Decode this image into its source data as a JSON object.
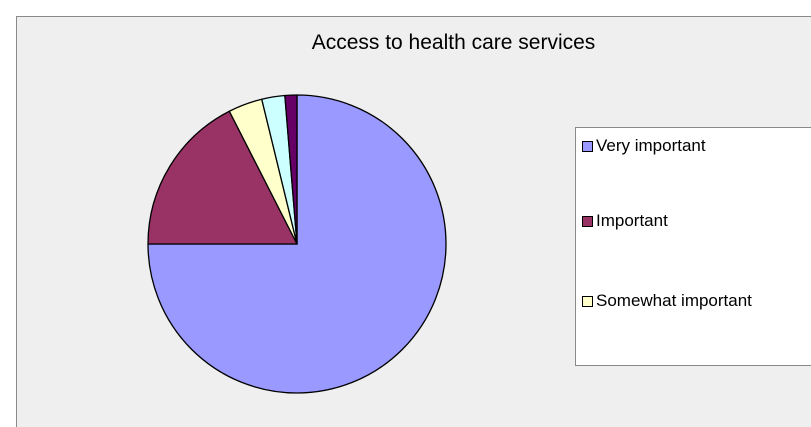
{
  "chart_data": {
    "type": "pie",
    "title": "Access to health care services",
    "categories": [
      "Very important",
      "Important",
      "Somewhat important",
      "",
      ""
    ],
    "values": [
      75.0,
      17.5,
      3.7,
      2.5,
      1.3
    ],
    "colors": [
      "#9999ff",
      "#993366",
      "#ffffcc",
      "#ccffff",
      "#660066"
    ],
    "start_angle_deg": 0,
    "direction": "clockwise",
    "legend": {
      "position": "right",
      "visible_entries": [
        "Very important",
        "Important",
        "Somewhat important"
      ]
    }
  }
}
